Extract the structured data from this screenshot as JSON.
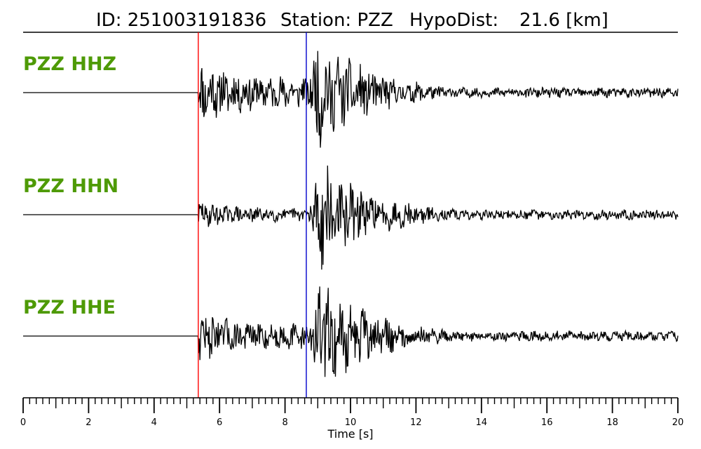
{
  "header": {
    "id_text": "ID: 251003191836",
    "station_text": "Station: PZZ",
    "hypodist_text": "HypoDist:",
    "hypodist_value": "21.6 [km]"
  },
  "chart_data": {
    "type": "line",
    "title": "ID: 251003191836   Station: PZZ   HypoDist:    21.6 [km]",
    "xlabel": "Time [s]",
    "ylabel": "",
    "xlim": [
      0,
      20
    ],
    "x_ticks_major": [
      0,
      2,
      4,
      6,
      8,
      10,
      12,
      14,
      16,
      18,
      20
    ],
    "x_tick_labels": [
      "0",
      "2",
      "4",
      "6",
      "8",
      "10",
      "12",
      "14",
      "16",
      "18",
      "20"
    ],
    "x_ticks_minor_step": 0.2,
    "grid": false,
    "legend": "none",
    "picks": [
      {
        "phase": "P",
        "time_s": 5.35,
        "color": "#ff0000"
      },
      {
        "phase": "S",
        "time_s": 8.65,
        "color": "#0000cc"
      }
    ],
    "series": [
      {
        "name": "PZZ HHZ",
        "onset_s": 5.35,
        "s_time_s": 8.65,
        "amp_p": 0.85,
        "amp_s": 1.3,
        "decay": 0.55,
        "seed": 11
      },
      {
        "name": "PZZ HHN",
        "onset_s": 5.35,
        "s_time_s": 8.65,
        "amp_p": 0.35,
        "amp_s": 1.3,
        "decay": 0.55,
        "seed": 29
      },
      {
        "name": "PZZ HHE",
        "onset_s": 5.35,
        "s_time_s": 8.65,
        "amp_p": 0.65,
        "amp_s": 1.35,
        "decay": 0.55,
        "seed": 47
      }
    ]
  },
  "colors": {
    "trace": "#000000",
    "label": "#4e9a06",
    "p_pick": "#ff0000",
    "s_pick": "#0000cc"
  }
}
